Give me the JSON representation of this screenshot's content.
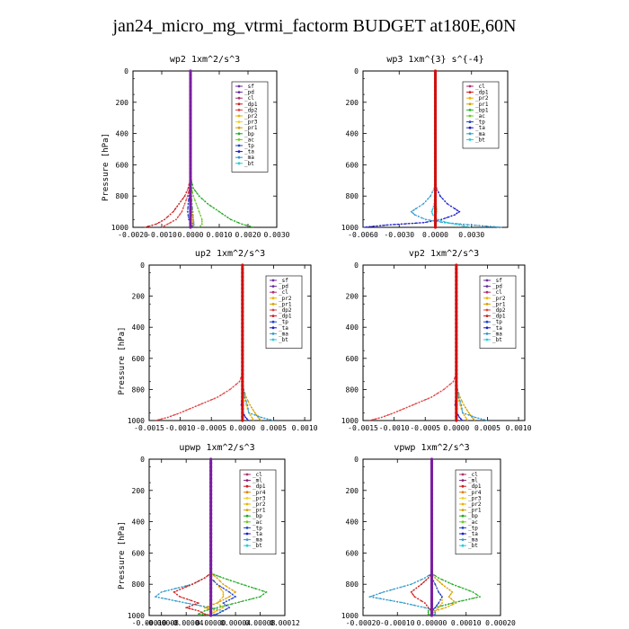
{
  "figure": {
    "title": "jan24_micro_mg_vtrmi_factorm  BUDGET at180E,60N"
  },
  "colors": {
    "_sf": "#7030a0",
    "_pd": "#6b2fa0",
    "_cl": "#b03070",
    "_ml": "#8b2070",
    "_dp1": "#cc2020",
    "_dp2": "#e04040",
    "_dp4": "#c01818",
    "_pr1": "#d8a000",
    "_pr2": "#f0b000",
    "_pr3": "#f0d020",
    "_pr4": "#e08000",
    "_bp": "#22aa22",
    "_bp1": "#22bb22",
    "_ac": "#66cc22",
    "_tp": "#2244cc",
    "_ta": "#1a1acc",
    "_ma": "#3399cc",
    "_bt": "#22ccdd"
  },
  "chart_data": [
    {
      "type": "line",
      "title": "wp2  1xm^2/s^3",
      "ylabel": "Pressure [hPa]",
      "xlim": [
        -0.002,
        0.003
      ],
      "ylim": [
        1000,
        0
      ],
      "xticks": [
        "-0.0020",
        "-0.0010",
        "0.0000",
        "0.0010",
        "0.0020",
        "0.0030"
      ],
      "xtick_values": [
        -0.002,
        -0.001,
        0,
        0.001,
        0.002,
        0.003
      ],
      "yticks": [
        "0",
        "200",
        "400",
        "600",
        "800",
        "1000"
      ],
      "legend_position": "top-right",
      "legend": [
        "_sf",
        "_pd",
        "_cl",
        "_dp1",
        "_dp2",
        "_pr2",
        "_pr3",
        "_pr1",
        "_bp",
        "_ac",
        "_tp",
        "_ta",
        "_ma",
        "_bt"
      ],
      "pressure": [
        0,
        650,
        700,
        750,
        800,
        850,
        900,
        950,
        980,
        1000
      ],
      "series": [
        {
          "name": "_dp1",
          "values": [
            0,
            0,
            -2e-05,
            -8e-05,
            -0.0002,
            -0.0004,
            -0.0006,
            -0.0009,
            -0.0012,
            -0.0016
          ]
        },
        {
          "name": "_dp2",
          "values": [
            0,
            0,
            -1e-05,
            -4e-05,
            -0.0001,
            -0.0002,
            -0.0003,
            -0.0005,
            -0.0008,
            -0.001
          ]
        },
        {
          "name": "_bp",
          "values": [
            0,
            0,
            3e-05,
            0.0001,
            0.0003,
            0.0006,
            0.001,
            0.0014,
            0.0018,
            0.0022
          ]
        },
        {
          "name": "_tp",
          "values": [
            0,
            0,
            0,
            -2e-05,
            -5e-05,
            -8e-05,
            -0.0001,
            -6e-05,
            0.0001,
            5e-05
          ]
        },
        {
          "name": "_ma",
          "values": [
            0,
            0,
            0,
            1e-05,
            3e-05,
            5e-05,
            8e-05,
            0.0001,
            0.00012,
            0.0001
          ]
        },
        {
          "name": "_pr1",
          "values": [
            0,
            0,
            0,
            0,
            2e-05,
            4e-05,
            6e-05,
            8e-05,
            0.0001,
            0.0001
          ]
        },
        {
          "name": "_ac",
          "values": [
            0,
            0,
            1e-05,
            4e-05,
            0.0001,
            0.0002,
            0.0003,
            0.0004,
            0.0004,
            0.0003
          ]
        },
        {
          "name": "_sf",
          "values": [
            0,
            0,
            0,
            0,
            0,
            0,
            0,
            0,
            0,
            0
          ]
        },
        {
          "name": "_pd",
          "values": [
            0,
            0,
            0,
            0,
            0,
            0,
            0,
            0,
            0,
            0
          ]
        }
      ]
    },
    {
      "type": "line",
      "title": "wp3  1xm^{3} s^{-4}",
      "ylabel": "",
      "xlim": [
        -0.006,
        0.006
      ],
      "ylim": [
        1000,
        0
      ],
      "xticks": [
        "-0.0060",
        "-0.0030",
        "0.0000",
        "0.0030"
      ],
      "xtick_values": [
        -0.006,
        -0.003,
        0,
        0.003
      ],
      "yticks": [
        "0",
        "200",
        "400",
        "600",
        "800",
        "1000"
      ],
      "legend_position": "top-right",
      "legend": [
        "_cl",
        "_dp1",
        "_pr2",
        "_pr1",
        "_bp1",
        "_ac",
        "_tp",
        "_ta",
        "_ma",
        "_bt"
      ],
      "pressure": [
        0,
        700,
        750,
        800,
        850,
        880,
        900,
        920,
        950,
        970,
        985,
        1000
      ],
      "series": [
        {
          "name": "_ta",
          "values": [
            0,
            0,
            0.0001,
            0.0004,
            0.001,
            0.0016,
            0.002,
            0.0016,
            0.0005,
            -0.001,
            -0.004,
            -0.006
          ]
        },
        {
          "name": "_ma",
          "values": [
            0,
            0,
            -0.0001,
            -0.0004,
            -0.001,
            -0.0016,
            -0.002,
            -0.0017,
            -0.0008,
            0.0008,
            0.003,
            0.0055
          ]
        },
        {
          "name": "_bt",
          "values": [
            0,
            0,
            0,
            -5e-05,
            -0.0001,
            -0.0002,
            -0.0003,
            -0.0002,
            0.0002,
            0.001,
            0.002,
            0.003
          ]
        },
        {
          "name": "_ac",
          "values": [
            0,
            0,
            0,
            2e-05,
            5e-05,
            0.0001,
            0.0001,
            5e-05,
            0,
            0,
            0,
            0
          ]
        },
        {
          "name": "_dp1",
          "values": [
            0,
            0,
            0,
            0,
            0,
            0,
            0,
            0,
            0,
            0,
            0,
            0
          ]
        },
        {
          "name": "_cl",
          "values": [
            0,
            0,
            0,
            0,
            0,
            0,
            0,
            0,
            0,
            0,
            0,
            0
          ]
        }
      ]
    },
    {
      "type": "line",
      "title": "up2  1xm^2/s^3",
      "ylabel": "Pressure [hPa]",
      "xlim": [
        -0.0015,
        0.0011
      ],
      "ylim": [
        1000,
        0
      ],
      "xticks": [
        "-0.0015",
        "-0.0010",
        "-0.0005",
        "0.0000",
        "0.0005",
        "0.0010"
      ],
      "xtick_values": [
        -0.0015,
        -0.001,
        -0.0005,
        0,
        0.0005,
        0.001
      ],
      "yticks": [
        "0",
        "200",
        "400",
        "600",
        "800",
        "1000"
      ],
      "legend_position": "top-right",
      "legend": [
        "_sf",
        "_pd",
        "_cl",
        "_pr2",
        "_pr1",
        "_dp2",
        "_dp1",
        "_tp",
        "_ta",
        "_ma",
        "_bt"
      ],
      "pressure": [
        0,
        700,
        750,
        800,
        850,
        900,
        950,
        980,
        1000
      ],
      "series": [
        {
          "name": "_dp2",
          "values": [
            0,
            0,
            -5e-05,
            -0.0002,
            -0.0004,
            -0.0007,
            -0.001,
            -0.0012,
            -0.0014
          ]
        },
        {
          "name": "_pr1",
          "values": [
            0,
            0,
            0,
            2e-05,
            6e-05,
            0.00012,
            0.0002,
            0.00025,
            0.0003
          ]
        },
        {
          "name": "_pr2",
          "values": [
            0,
            0,
            0,
            1e-05,
            3e-05,
            6e-05,
            0.0001,
            0.00015,
            0.00018
          ]
        },
        {
          "name": "_ma",
          "values": [
            0,
            0,
            0,
            2e-05,
            4e-05,
            8e-05,
            0.0001,
            0.0003,
            0.0005
          ]
        },
        {
          "name": "_ta",
          "values": [
            0,
            0,
            0,
            0,
            -1e-05,
            -2e-05,
            1e-05,
            5e-05,
            0.0001
          ]
        },
        {
          "name": "_sf",
          "values": [
            0,
            0,
            0,
            0,
            0,
            0,
            0,
            0,
            0
          ]
        },
        {
          "name": "_pd",
          "values": [
            0,
            0,
            0,
            0,
            0,
            0,
            0,
            0,
            0
          ]
        }
      ]
    },
    {
      "type": "line",
      "title": "vp2  1xm^2/s^3",
      "ylabel": "",
      "xlim": [
        -0.0015,
        0.0011
      ],
      "ylim": [
        1000,
        0
      ],
      "xticks": [
        "-0.0015",
        "-0.0010",
        "-0.0005",
        "0.0000",
        "0.0005",
        "0.0010"
      ],
      "xtick_values": [
        -0.0015,
        -0.001,
        -0.0005,
        0,
        0.0005,
        0.001
      ],
      "yticks": [
        "0",
        "200",
        "400",
        "600",
        "800",
        "1000"
      ],
      "legend_position": "top-right",
      "legend": [
        "_sf",
        "_pd",
        "_cl",
        "_pr2",
        "_pr1",
        "_dp2",
        "_dp1",
        "_tp",
        "_ta",
        "_ma",
        "_bt"
      ],
      "pressure": [
        0,
        700,
        750,
        800,
        850,
        900,
        950,
        980,
        1000
      ],
      "series": [
        {
          "name": "_dp2",
          "values": [
            0,
            0,
            -5e-05,
            -0.0002,
            -0.0004,
            -0.0007,
            -0.001,
            -0.0012,
            -0.0014
          ]
        },
        {
          "name": "_pr1",
          "values": [
            0,
            0,
            0,
            2e-05,
            6e-05,
            0.00012,
            0.0002,
            0.00025,
            0.0003
          ]
        },
        {
          "name": "_pr2",
          "values": [
            0,
            0,
            0,
            1e-05,
            3e-05,
            6e-05,
            0.0001,
            0.00015,
            0.00018
          ]
        },
        {
          "name": "_ma",
          "values": [
            0,
            0,
            0,
            2e-05,
            4e-05,
            8e-05,
            0.0001,
            0.0003,
            0.0005
          ]
        },
        {
          "name": "_ta",
          "values": [
            0,
            0,
            0,
            0,
            -1e-05,
            -2e-05,
            1e-05,
            5e-05,
            0.0001
          ]
        },
        {
          "name": "_sf",
          "values": [
            0,
            0,
            0,
            0,
            0,
            0,
            0,
            0,
            0
          ]
        },
        {
          "name": "_pd",
          "values": [
            0,
            0,
            0,
            0,
            0,
            0,
            0,
            0,
            0
          ]
        }
      ]
    },
    {
      "type": "line",
      "title": "upwp  1xm^2/s^3",
      "ylabel": "Pressure [hPa]",
      "xlim": [
        -0.0001,
        0.00012
      ],
      "ylim": [
        1000,
        0
      ],
      "xticks": [
        "-0.00010",
        "-0.00008",
        "-0.00004",
        "0.00000",
        "0.00004",
        "0.00008",
        "0.00012"
      ],
      "xtick_values": [
        -0.0001,
        -8e-05,
        -4e-05,
        0,
        4e-05,
        8e-05,
        0.00012
      ],
      "yticks": [
        "0",
        "200",
        "400",
        "600",
        "800",
        "1000"
      ],
      "legend_position": "top-right",
      "legend": [
        "_cl",
        "_ml",
        "_dp1",
        "_pr4",
        "_pr3",
        "_pr2",
        "_pr1",
        "_bp",
        "_ac",
        "_tp",
        "_ta",
        "_ma",
        "_bt"
      ],
      "pressure": [
        0,
        730,
        760,
        800,
        850,
        880,
        920,
        950,
        970,
        990,
        1000
      ],
      "series": [
        {
          "name": "_ma",
          "values": [
            0,
            0,
            -1e-05,
            -3e-05,
            -8e-05,
            -9e-05,
            -4e-05,
            0,
            2e-05,
            1e-05,
            0
          ]
        },
        {
          "name": "_bp",
          "values": [
            0,
            0,
            2e-05,
            5e-05,
            9e-05,
            8e-05,
            4e-05,
            1e-05,
            -1e-05,
            -2e-05,
            0
          ]
        },
        {
          "name": "_dp1",
          "values": [
            0,
            0,
            -1e-05,
            -3e-05,
            -6e-05,
            -5e-05,
            -2e-05,
            -4e-05,
            -2e-05,
            -1e-05,
            0
          ]
        },
        {
          "name": "_pr1",
          "values": [
            0,
            0,
            1e-05,
            2e-05,
            4e-05,
            3e-05,
            1e-05,
            -1e-05,
            1e-05,
            0,
            0
          ]
        },
        {
          "name": "_pr2",
          "values": [
            0,
            0,
            0,
            1e-05,
            2e-05,
            2e-05,
            1e-05,
            2e-05,
            1e-05,
            0,
            0
          ]
        },
        {
          "name": "_tp",
          "values": [
            0,
            0,
            0,
            1e-05,
            3e-05,
            4e-05,
            2e-05,
            3e-05,
            2e-05,
            1e-05,
            0
          ]
        },
        {
          "name": "_cl",
          "values": [
            0,
            0,
            0,
            0,
            0,
            0,
            0,
            0,
            0,
            0,
            0
          ]
        }
      ]
    },
    {
      "type": "line",
      "title": "vpwp  1xm^2/s^3",
      "ylabel": "",
      "xlim": [
        -0.0002,
        0.0002
      ],
      "ylim": [
        1000,
        0
      ],
      "xticks": [
        "-0.00020",
        "-0.00010",
        "0.00000",
        "0.00010",
        "0.00020"
      ],
      "xtick_values": [
        -0.0002,
        -0.0001,
        0,
        0.0001,
        0.0002
      ],
      "yticks": [
        "0",
        "200",
        "400",
        "600",
        "800",
        "1000"
      ],
      "legend_position": "top-right",
      "legend": [
        "_cl",
        "_ml",
        "_dp1",
        "_pr4",
        "_pr3",
        "_pr2",
        "_pr1",
        "_bp",
        "_ac",
        "_tp",
        "_ta",
        "_ma",
        "_bt"
      ],
      "pressure": [
        0,
        730,
        760,
        800,
        850,
        880,
        920,
        950,
        970,
        990,
        1000
      ],
      "series": [
        {
          "name": "_ma",
          "values": [
            0,
            0,
            -2e-05,
            -6e-05,
            -0.00014,
            -0.00018,
            -8e-05,
            -2e-05,
            1e-05,
            1e-05,
            0
          ]
        },
        {
          "name": "_bp",
          "values": [
            0,
            0,
            2e-05,
            6e-05,
            0.00012,
            0.00014,
            6e-05,
            1e-05,
            -1e-05,
            -1e-05,
            0
          ]
        },
        {
          "name": "_dp1",
          "values": [
            0,
            0,
            -1e-05,
            -3e-05,
            -6e-05,
            -5e-05,
            -2e-05,
            -1e-05,
            0,
            0,
            0
          ]
        },
        {
          "name": "_pr1",
          "values": [
            0,
            0,
            1e-05,
            3e-05,
            6e-05,
            5e-05,
            7e-05,
            4e-05,
            1e-05,
            0,
            0
          ]
        },
        {
          "name": "_pr2",
          "values": [
            0,
            0,
            0,
            1e-05,
            2e-05,
            3e-05,
            3e-05,
            2e-05,
            1e-05,
            0,
            0
          ]
        },
        {
          "name": "_tp",
          "values": [
            0,
            0,
            0,
            1e-05,
            2e-05,
            3e-05,
            2e-05,
            1e-05,
            0,
            0,
            0
          ]
        },
        {
          "name": "_cl",
          "values": [
            0,
            0,
            0,
            0,
            0,
            0,
            0,
            0,
            0,
            0,
            0
          ]
        }
      ]
    }
  ]
}
